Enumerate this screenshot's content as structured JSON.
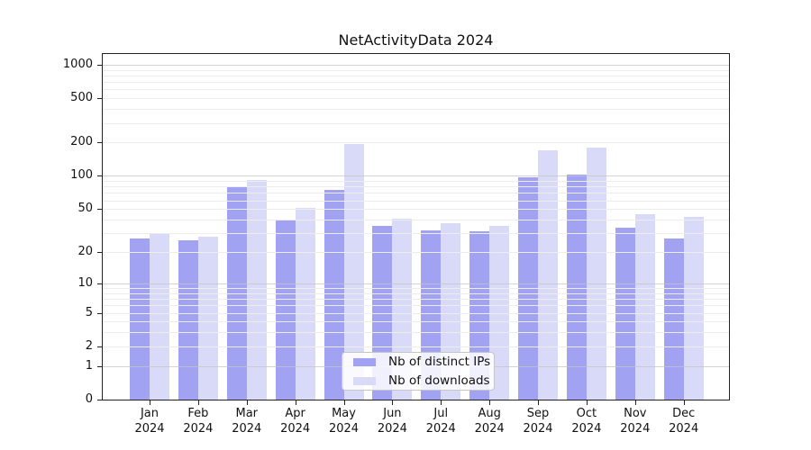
{
  "chart_data": {
    "type": "bar",
    "title": "NetActivityData 2024",
    "categories": [
      "Jan 2024",
      "Feb 2024",
      "Mar 2024",
      "Apr 2024",
      "May 2024",
      "Jun 2024",
      "Jul 2024",
      "Aug 2024",
      "Sep 2024",
      "Oct 2024",
      "Nov 2024",
      "Dec 2024"
    ],
    "series": [
      {
        "name": "Nb of distinct IPs",
        "color": "#a2a2f2",
        "values": [
          27,
          26,
          80,
          39,
          74,
          35,
          32,
          31,
          97,
          103,
          34,
          27
        ]
      },
      {
        "name": "Nb of downloads",
        "color": "#d9d9f8",
        "values": [
          30,
          28,
          92,
          51,
          193,
          41,
          37,
          35,
          170,
          181,
          45,
          42
        ]
      }
    ],
    "yscale": "log1p",
    "yticks": [
      0,
      1,
      2,
      5,
      10,
      20,
      50,
      100,
      200,
      500,
      1000
    ],
    "ylim": [
      0,
      1300
    ],
    "xlabel": "",
    "ylabel": "",
    "grid": "horizontal",
    "legend_position": "lower-center"
  }
}
